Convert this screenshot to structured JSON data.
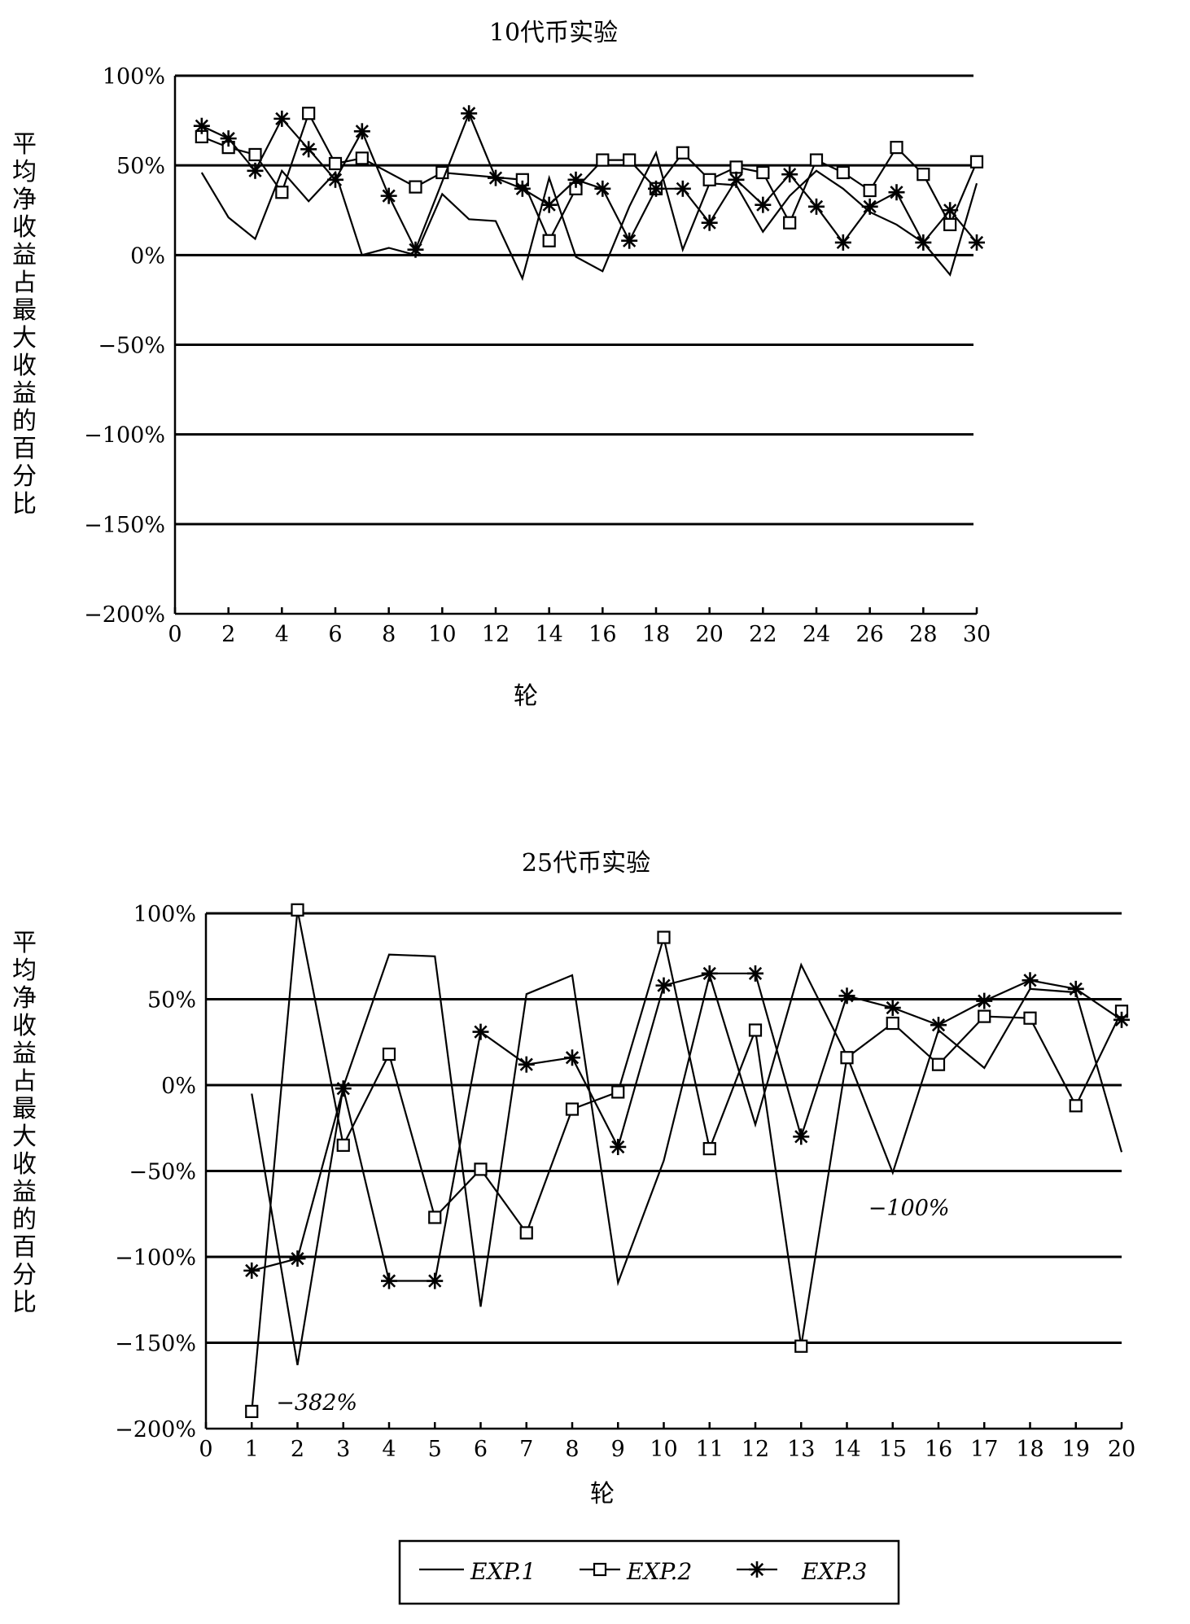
{
  "chart_data": [
    {
      "type": "line",
      "title": "10代币实验",
      "xlabel": "轮",
      "ylabel": "平均净收益占最大收益的百分比",
      "xlim": [
        0,
        30
      ],
      "ylim": [
        -200,
        100
      ],
      "x_ticks": [
        "0",
        "2",
        "4",
        "6",
        "8",
        "10",
        "12",
        "14",
        "16",
        "18",
        "20",
        "22",
        "24",
        "26",
        "28",
        "30"
      ],
      "y_ticks": [
        "100%",
        "50%",
        "0%",
        "−50%",
        "−100%",
        "−150%",
        "−200%"
      ],
      "gridlines": [
        100,
        50,
        0,
        -50,
        -100,
        -150
      ],
      "x": [
        1,
        2,
        3,
        4,
        5,
        6,
        7,
        8,
        9,
        10,
        11,
        12,
        13,
        14,
        15,
        16,
        17,
        18,
        19,
        20,
        21,
        22,
        23,
        24,
        25,
        26,
        27,
        28,
        29,
        30
      ],
      "series": [
        {
          "name": "EXP.1",
          "marker": "none",
          "values": [
            46,
            21,
            9,
            47,
            30,
            46,
            0,
            4,
            0,
            34,
            20,
            19,
            -13,
            43,
            -1,
            -9,
            27,
            57,
            3,
            40,
            39,
            13,
            33,
            47,
            37,
            24,
            17,
            7,
            -11,
            40
          ]
        },
        {
          "name": "EXP.2",
          "marker": "square",
          "values": [
            66,
            60,
            56,
            35,
            79,
            51,
            54,
            null,
            38,
            46,
            null,
            null,
            42,
            8,
            37,
            53,
            53,
            37,
            57,
            42,
            49,
            46,
            18,
            53,
            46,
            36,
            60,
            45,
            17,
            52
          ]
        },
        {
          "name": "EXP.3",
          "marker": "star",
          "values": [
            72,
            65,
            47,
            76,
            59,
            42,
            69,
            33,
            3,
            null,
            79,
            43,
            37,
            28,
            42,
            37,
            8,
            37,
            37,
            18,
            42,
            28,
            45,
            27,
            7,
            27,
            35,
            7,
            25,
            7
          ]
        }
      ]
    },
    {
      "type": "line",
      "title": "25代币实验",
      "xlabel": "轮",
      "ylabel": "平均净收益占最大收益的百分比",
      "xlim": [
        0,
        20
      ],
      "ylim": [
        -200,
        100
      ],
      "x_ticks": [
        "0",
        "1",
        "2",
        "3",
        "4",
        "5",
        "6",
        "7",
        "8",
        "9",
        "10",
        "11",
        "12",
        "13",
        "14",
        "15",
        "16",
        "17",
        "18",
        "19",
        "20"
      ],
      "y_ticks": [
        "100%",
        "50%",
        "0%",
        "−50%",
        "−100%",
        "−150%",
        "−200%"
      ],
      "gridlines": [
        100,
        50,
        0,
        -50,
        -100,
        -150
      ],
      "x": [
        1,
        2,
        3,
        4,
        5,
        6,
        7,
        8,
        9,
        10,
        11,
        12,
        13,
        14,
        15,
        16,
        17,
        18,
        19,
        20
      ],
      "series": [
        {
          "name": "EXP.1",
          "marker": "none",
          "values": [
            -5,
            -163,
            -1,
            76,
            75,
            -129,
            53,
            64,
            -115,
            -44,
            64,
            -23,
            70,
            17,
            -51,
            32,
            10,
            56,
            54,
            -39
          ]
        },
        {
          "name": "EXP.2",
          "marker": "square",
          "values": [
            -190,
            102,
            -35,
            18,
            -77,
            -49,
            -86,
            -14,
            -4,
            86,
            -37,
            32,
            -152,
            16,
            36,
            12,
            40,
            39,
            -12,
            43
          ]
        },
        {
          "name": "EXP.3",
          "marker": "star",
          "values": [
            -108,
            -101,
            -2,
            -114,
            -114,
            31,
            12,
            16,
            -36,
            58,
            65,
            65,
            -30,
            52,
            45,
            35,
            49,
            61,
            56,
            38
          ]
        }
      ],
      "annotations": [
        {
          "text": "−382%",
          "x": 1,
          "y": -190
        },
        {
          "text": "−100%",
          "x": 15,
          "y": -71
        }
      ]
    }
  ],
  "legend": {
    "placement": "bottom-center",
    "items": [
      {
        "label": "EXP.1",
        "marker": "none"
      },
      {
        "label": "EXP.2",
        "marker": "square"
      },
      {
        "label": "EXP.3",
        "marker": "star"
      }
    ]
  }
}
